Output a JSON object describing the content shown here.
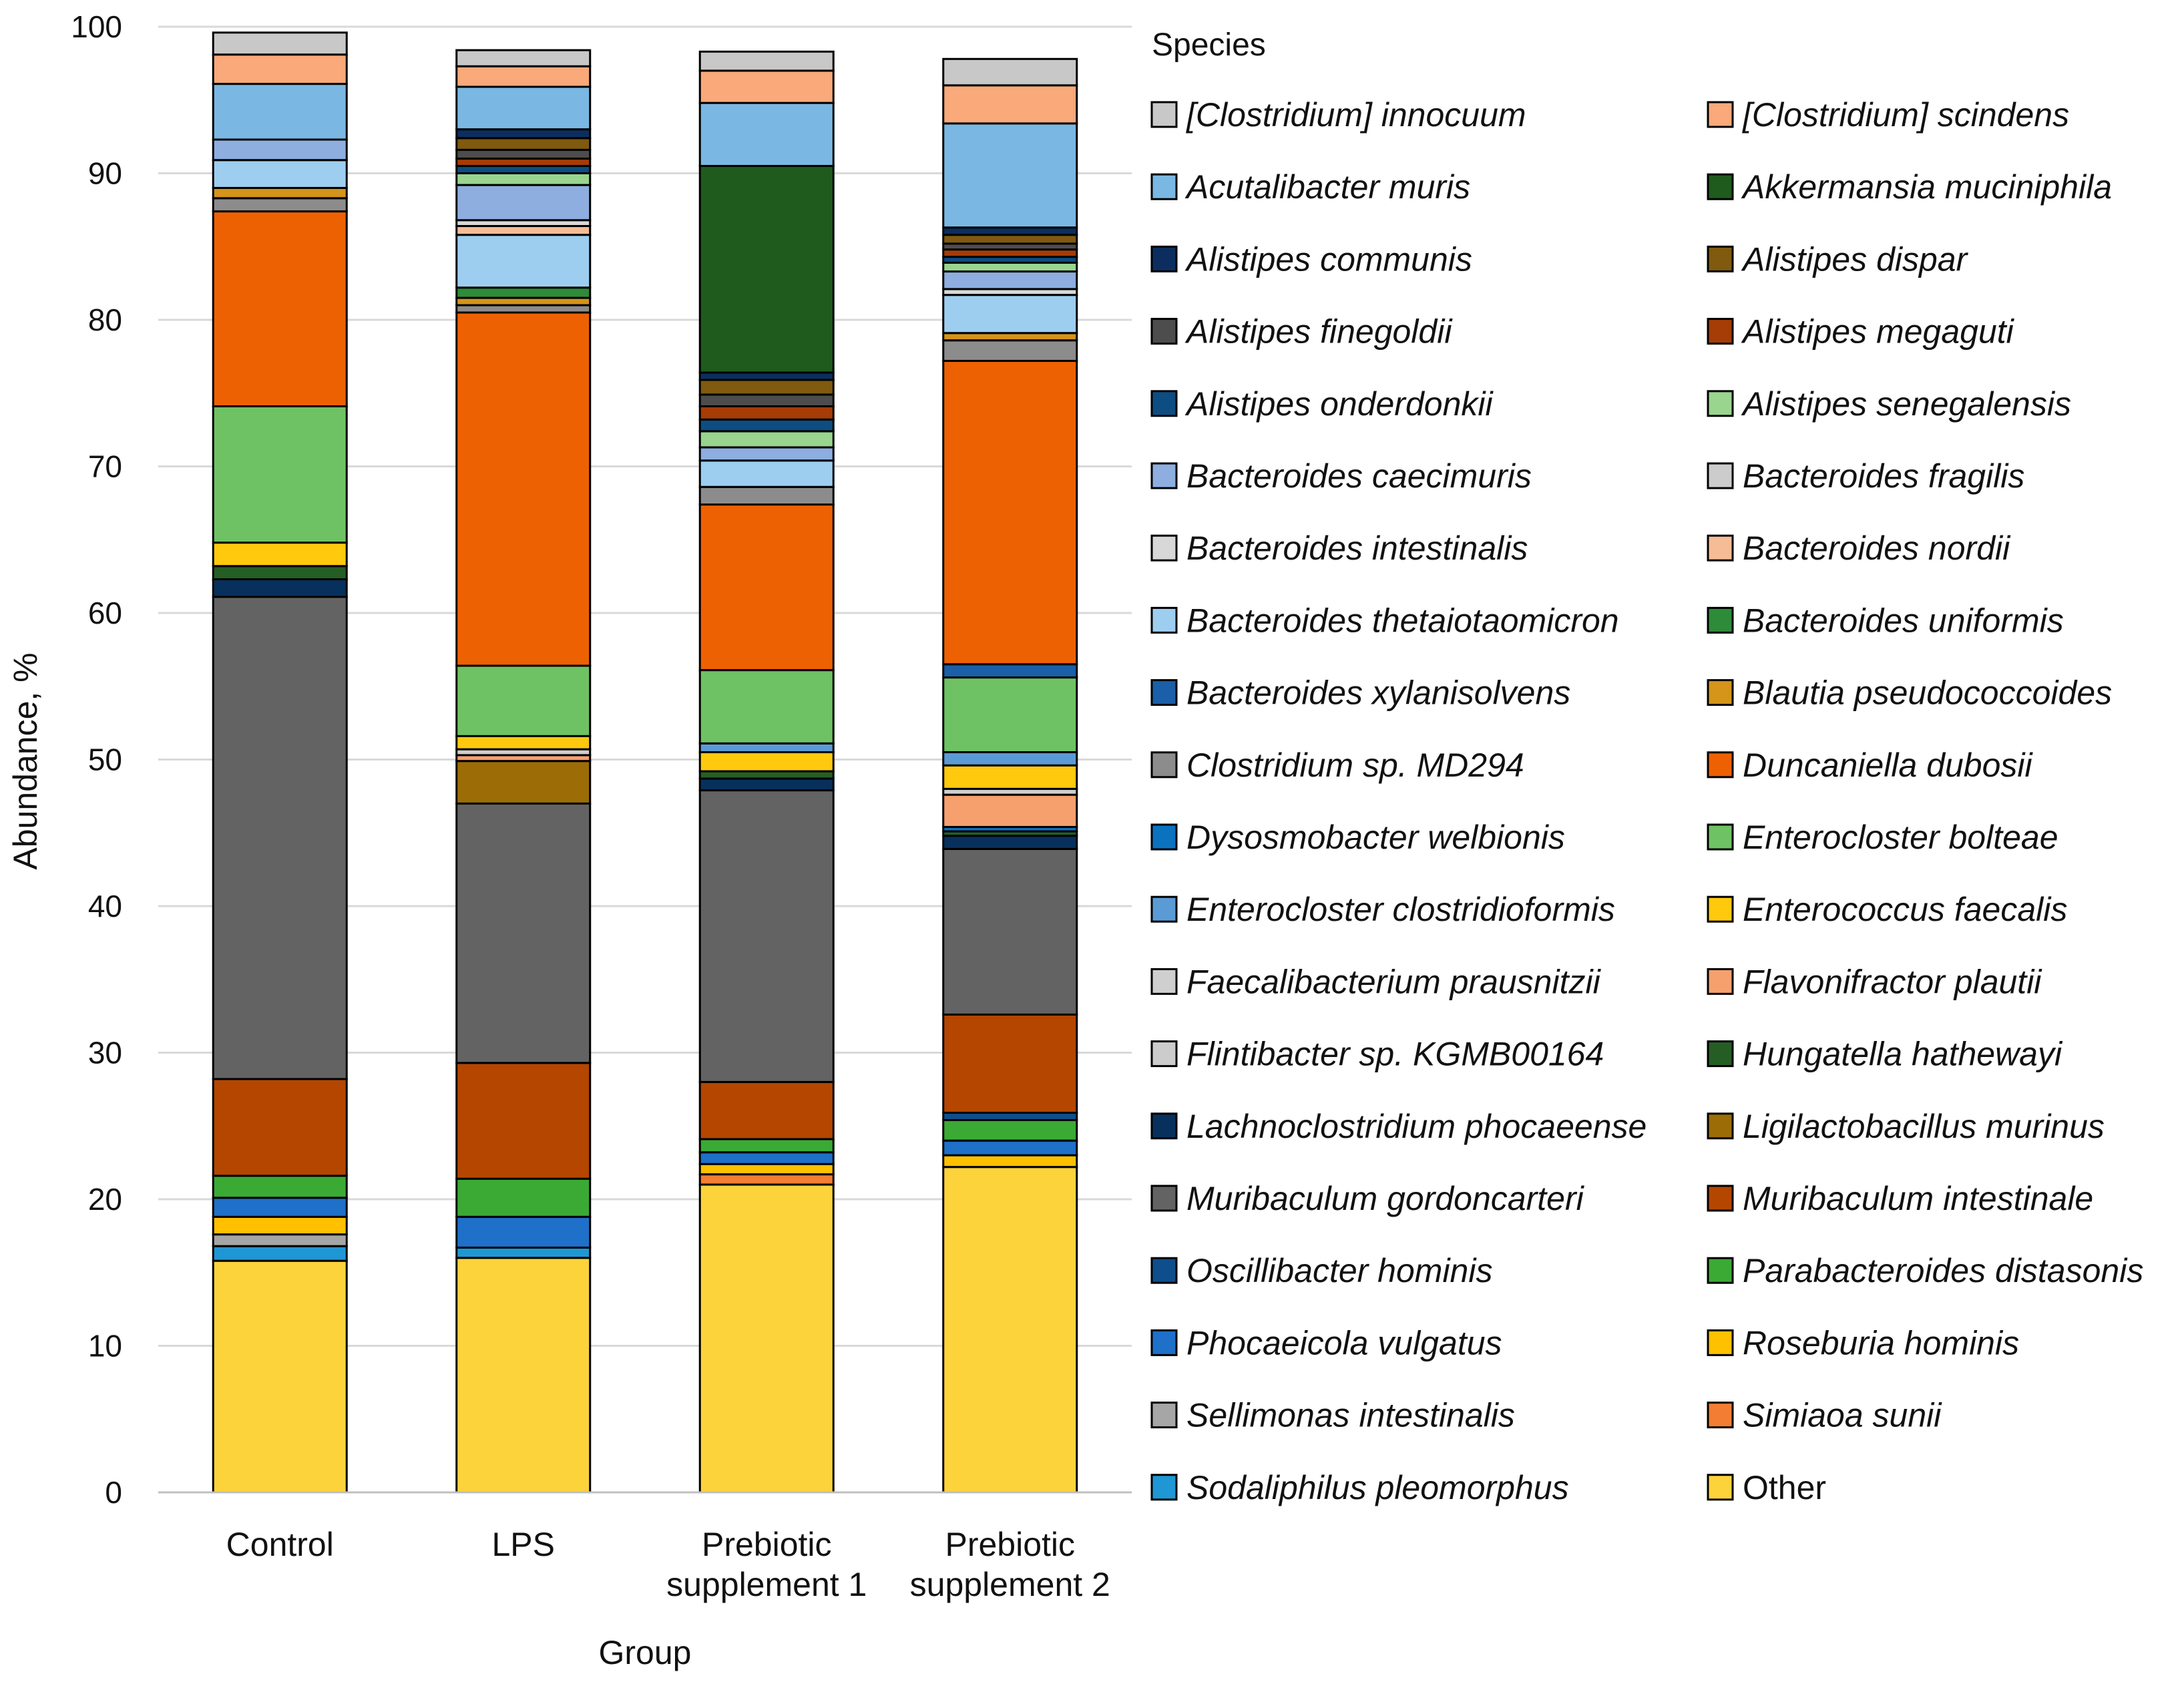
{
  "chart_data": {
    "type": "bar",
    "stacked": true,
    "title": "",
    "xlabel": "Group",
    "ylabel": "Abundance, %",
    "ylim": [
      0,
      100
    ],
    "yticks": [
      0,
      10,
      20,
      30,
      40,
      50,
      60,
      70,
      80,
      90,
      100
    ],
    "categories": [
      [
        "Control"
      ],
      [
        "LPS"
      ],
      [
        "Prebiotic",
        "supplement 1"
      ],
      [
        "Prebiotic",
        "supplement 2"
      ]
    ],
    "legend_title": "Species",
    "legend_position": "right",
    "legend": [
      "[Clostridium] innocuum",
      "[Clostridium] scindens",
      "Acutalibacter muris",
      "Akkermansia muciniphila",
      "Alistipes communis",
      "Alistipes dispar",
      "Alistipes finegoldii",
      "Alistipes megaguti",
      "Alistipes onderdonkii",
      "Alistipes senegalensis",
      "Bacteroides caecimuris",
      "Bacteroides fragilis",
      "Bacteroides intestinalis",
      "Bacteroides nordii",
      "Bacteroides thetaiotaomicron",
      "Bacteroides uniformis",
      "Bacteroides xylanisolvens",
      "Blautia pseudococcoides",
      "Clostridium sp. MD294",
      "Duncaniella dubosii",
      "Dysosmobacter welbionis",
      "Enterocloster bolteae",
      "Enterocloster clostridioformis",
      "Enterococcus faecalis",
      "Faecalibacterium prausnitzii",
      "Flavonifractor plautii",
      "Flintibacter sp. KGMB00164",
      "Hungatella hathewayi",
      "Lachnoclostridium phocaeense",
      "Ligilactobacillus murinus",
      "Muribaculum gordoncarteri",
      "Muribaculum intestinale",
      "Oscillibacter hominis",
      "Parabacteroides distasonis",
      "Phocaeicola vulgatus",
      "Roseburia hominis",
      "Sellimonas intestinalis",
      "Simiaoa sunii",
      "Sodaliphilus pleomorphus",
      "Other"
    ],
    "series": [
      {
        "name": "Other",
        "color": "#FDD33C",
        "values": [
          15.8,
          16.0,
          21.0,
          22.2
        ]
      },
      {
        "name": "Sodaliphilus pleomorphus",
        "color": "#1F97D4",
        "values": [
          1.0,
          0.7,
          0.0,
          0.0
        ]
      },
      {
        "name": "Simiaoa sunii",
        "color": "#F37D32",
        "values": [
          0.0,
          0.0,
          0.7,
          0.0
        ]
      },
      {
        "name": "Sellimonas intestinalis",
        "color": "#A6A6A6",
        "values": [
          0.8,
          0.0,
          0.0,
          0.0
        ]
      },
      {
        "name": "Roseburia hominis",
        "color": "#FFC000",
        "values": [
          1.2,
          0.0,
          0.7,
          0.8
        ]
      },
      {
        "name": "Phocaeicola vulgatus",
        "color": "#1F70C9",
        "values": [
          1.3,
          2.1,
          0.8,
          1.0
        ]
      },
      {
        "name": "Parabacteroides distasonis",
        "color": "#3AAA35",
        "values": [
          1.5,
          2.6,
          0.9,
          1.4
        ]
      },
      {
        "name": "Oscillibacter hominis",
        "color": "#0E4E8C",
        "values": [
          0.0,
          0.0,
          0.0,
          0.5
        ]
      },
      {
        "name": "Muribaculum intestinale",
        "color": "#B44600",
        "values": [
          6.6,
          7.9,
          3.9,
          6.7
        ]
      },
      {
        "name": "Muribaculum gordoncarteri",
        "color": "#636363",
        "values": [
          32.9,
          17.7,
          19.9,
          11.3
        ]
      },
      {
        "name": "Lachnoclostridium phocaeense",
        "color": "#08305C",
        "values": [
          1.2,
          0.0,
          0.8,
          0.9
        ]
      },
      {
        "name": "Ligilactobacillus murinus",
        "color": "#9C6D07",
        "values": [
          0.0,
          2.9,
          0.0,
          0.0
        ]
      },
      {
        "name": "Hungatella hathewayi",
        "color": "#255E25",
        "values": [
          0.9,
          0.0,
          0.5,
          0.3
        ]
      },
      {
        "name": "Dysosmobacter welbionis",
        "color": "#0B72C0",
        "values": [
          0.0,
          0.0,
          0.0,
          0.3
        ]
      },
      {
        "name": "Flavonifractor plautii",
        "color": "#F6A06E",
        "values": [
          0.0,
          0.4,
          0.0,
          2.2
        ]
      },
      {
        "name": "Faecalibacterium prausnitzii",
        "color": "#CFCFCF",
        "values": [
          0.0,
          0.4,
          0.0,
          0.4
        ]
      },
      {
        "name": "Enterococcus faecalis",
        "color": "#FFC90E",
        "values": [
          1.6,
          0.9,
          1.3,
          1.6
        ]
      },
      {
        "name": "Enterocloster clostridioformis",
        "color": "#5B9BD5",
        "values": [
          0.0,
          0.0,
          0.6,
          0.9
        ]
      },
      {
        "name": "Enterocloster bolteae",
        "color": "#6FC263",
        "values": [
          9.3,
          4.8,
          5.0,
          5.1
        ]
      },
      {
        "name": "Bacteroides xylanisolvens",
        "color": "#1A5FA8",
        "values": [
          0.0,
          0.0,
          0.0,
          0.9
        ]
      },
      {
        "name": "Duncaniella dubosii",
        "color": "#ED6103",
        "values": [
          13.3,
          24.1,
          11.3,
          20.7
        ]
      },
      {
        "name": "Clostridium sp. MD294",
        "color": "#8C8C8C",
        "values": [
          0.9,
          0.5,
          1.2,
          1.4
        ]
      },
      {
        "name": "Blautia pseudococcoides",
        "color": "#D5941A",
        "values": [
          0.7,
          0.5,
          0.0,
          0.5
        ]
      },
      {
        "name": "Bacteroides uniformis",
        "color": "#2E8B3A",
        "values": [
          0.0,
          0.7,
          0.0,
          0.0
        ]
      },
      {
        "name": "Bacteroides thetaiotaomicron",
        "color": "#9DCEF0",
        "values": [
          1.9,
          3.6,
          1.8,
          2.6
        ]
      },
      {
        "name": "Bacteroides nordii",
        "color": "#F6BC96",
        "values": [
          0.0,
          0.6,
          0.0,
          0.0
        ]
      },
      {
        "name": "Bacteroides intestinalis",
        "color": "#D8D8D8",
        "values": [
          0.0,
          0.4,
          0.0,
          0.4
        ]
      },
      {
        "name": "Bacteroides caecimuris",
        "color": "#8DAEDF",
        "values": [
          1.4,
          2.4,
          0.9,
          1.2
        ]
      },
      {
        "name": "Alistipes senegalensis",
        "color": "#99D58E",
        "values": [
          0.0,
          0.8,
          1.1,
          0.6
        ]
      },
      {
        "name": "Alistipes onderdonkii",
        "color": "#0D4D82",
        "values": [
          0.0,
          0.5,
          0.8,
          0.4
        ]
      },
      {
        "name": "Alistipes megaguti",
        "color": "#A63C06",
        "values": [
          0.0,
          0.5,
          0.9,
          0.5
        ]
      },
      {
        "name": "Alistipes finegoldii",
        "color": "#4D4D4D",
        "values": [
          0.0,
          0.6,
          0.8,
          0.4
        ]
      },
      {
        "name": "Alistipes dispar",
        "color": "#7F5A0F",
        "values": [
          0.0,
          0.8,
          1.0,
          0.6
        ]
      },
      {
        "name": "Alistipes communis",
        "color": "#0C2E5E",
        "values": [
          0.0,
          0.6,
          0.5,
          0.5
        ]
      },
      {
        "name": "Akkermansia muciniphila",
        "color": "#1F5B1D",
        "values": [
          0.0,
          0.0,
          14.1,
          0.0
        ]
      },
      {
        "name": "Acutalibacter muris",
        "color": "#7AB8E3",
        "values": [
          3.8,
          2.9,
          4.3,
          7.1
        ]
      },
      {
        "name": "[Clostridium] scindens",
        "color": "#F9A97A",
        "values": [
          2.0,
          1.4,
          2.2,
          2.6
        ]
      },
      {
        "name": "[Clostridium] innocuum",
        "color": "#C8C8C8",
        "values": [
          1.5,
          1.1,
          1.3,
          1.8
        ]
      }
    ]
  }
}
